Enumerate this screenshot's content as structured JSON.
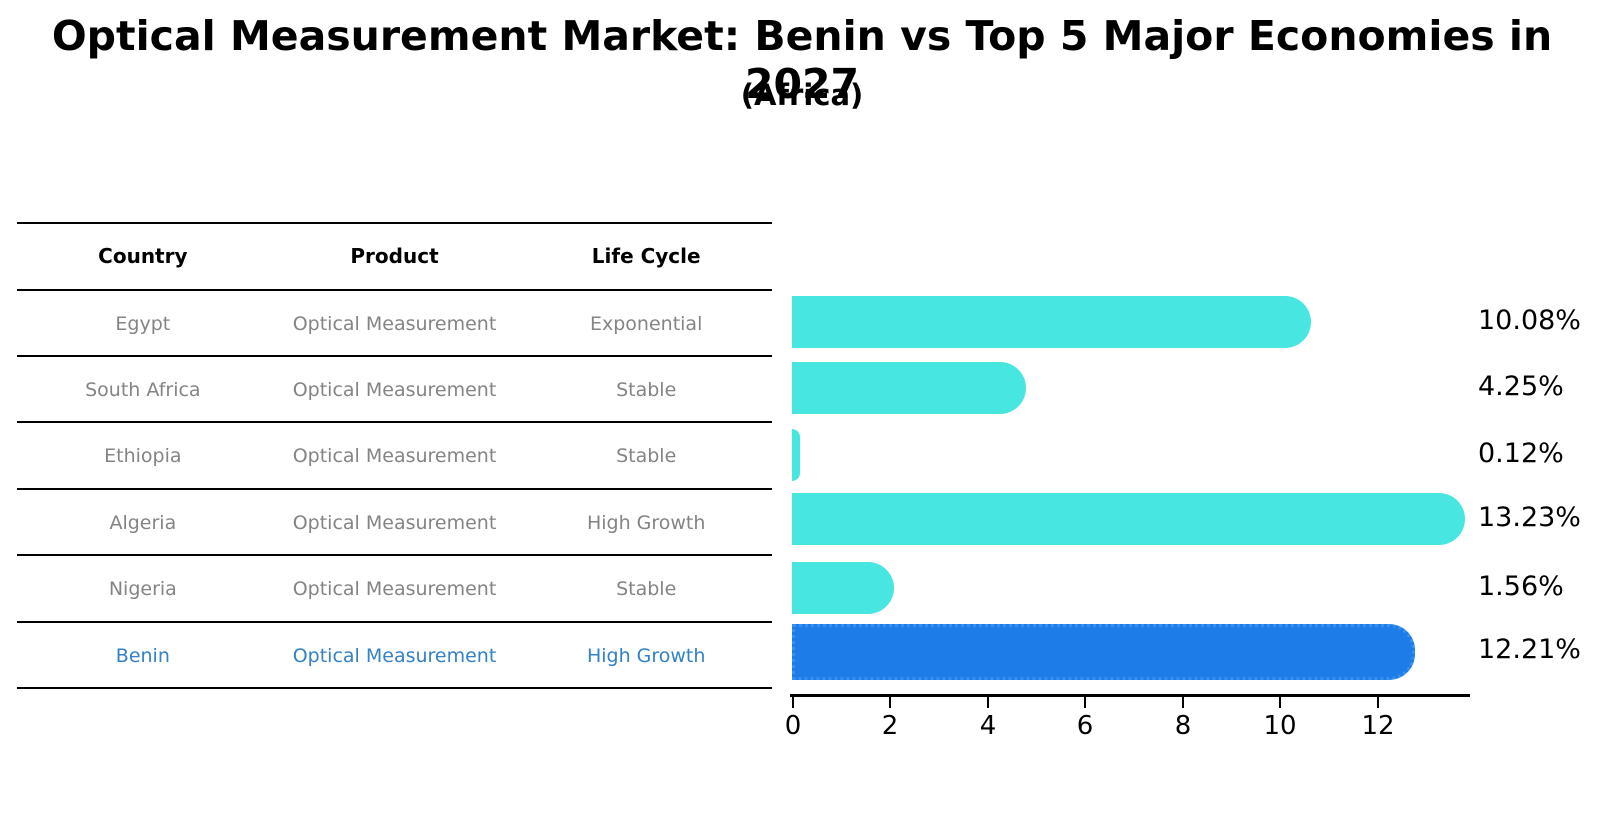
{
  "header": {
    "title": "Optical Measurement Market: Benin vs Top 5 Major Economies in 2027",
    "subtitle": "(Africa)"
  },
  "table": {
    "headers": [
      "Country",
      "Product",
      "Life Cycle"
    ],
    "rows": [
      {
        "country": "Egypt",
        "product": "Optical Measurement",
        "life_cycle": "Exponential"
      },
      {
        "country": "South Africa",
        "product": "Optical Measurement",
        "life_cycle": "Stable"
      },
      {
        "country": "Ethiopia",
        "product": "Optical Measurement",
        "life_cycle": "Stable"
      },
      {
        "country": "Algeria",
        "product": "Optical Measurement",
        "life_cycle": "High Growth"
      },
      {
        "country": "Nigeria",
        "product": "Optical Measurement",
        "life_cycle": "Stable"
      },
      {
        "country": "Benin",
        "product": "Optical Measurement",
        "life_cycle": "High Growth"
      }
    ],
    "highlight_row_index": 5,
    "text_color": "#848484",
    "highlight_text_color": "#3381C6"
  },
  "chart_data": {
    "type": "bar",
    "orientation": "horizontal",
    "title": "Optical Measurement Market: Benin vs Top 5 Major Economies in 2027",
    "subtitle": "(Africa)",
    "categories": [
      "Egypt",
      "South Africa",
      "Ethiopia",
      "Algeria",
      "Nigeria",
      "Benin"
    ],
    "values": [
      10.08,
      4.25,
      0.12,
      13.23,
      1.56,
      12.21
    ],
    "value_labels": [
      "10.08%",
      "4.25%",
      "0.12%",
      "13.23%",
      "1.56%",
      "12.21%"
    ],
    "x_ticks": [
      "0",
      "2",
      "4",
      "6",
      "8",
      "10",
      "12"
    ],
    "xlim": [
      0,
      13.9
    ],
    "xlabel": "",
    "ylabel": "",
    "grid": false,
    "legend": "none",
    "bar_color": "#47E6E1",
    "highlight_color": "#1D7CE8",
    "highlight_border_color": "#3B8FF0",
    "highlight_index": 5
  }
}
